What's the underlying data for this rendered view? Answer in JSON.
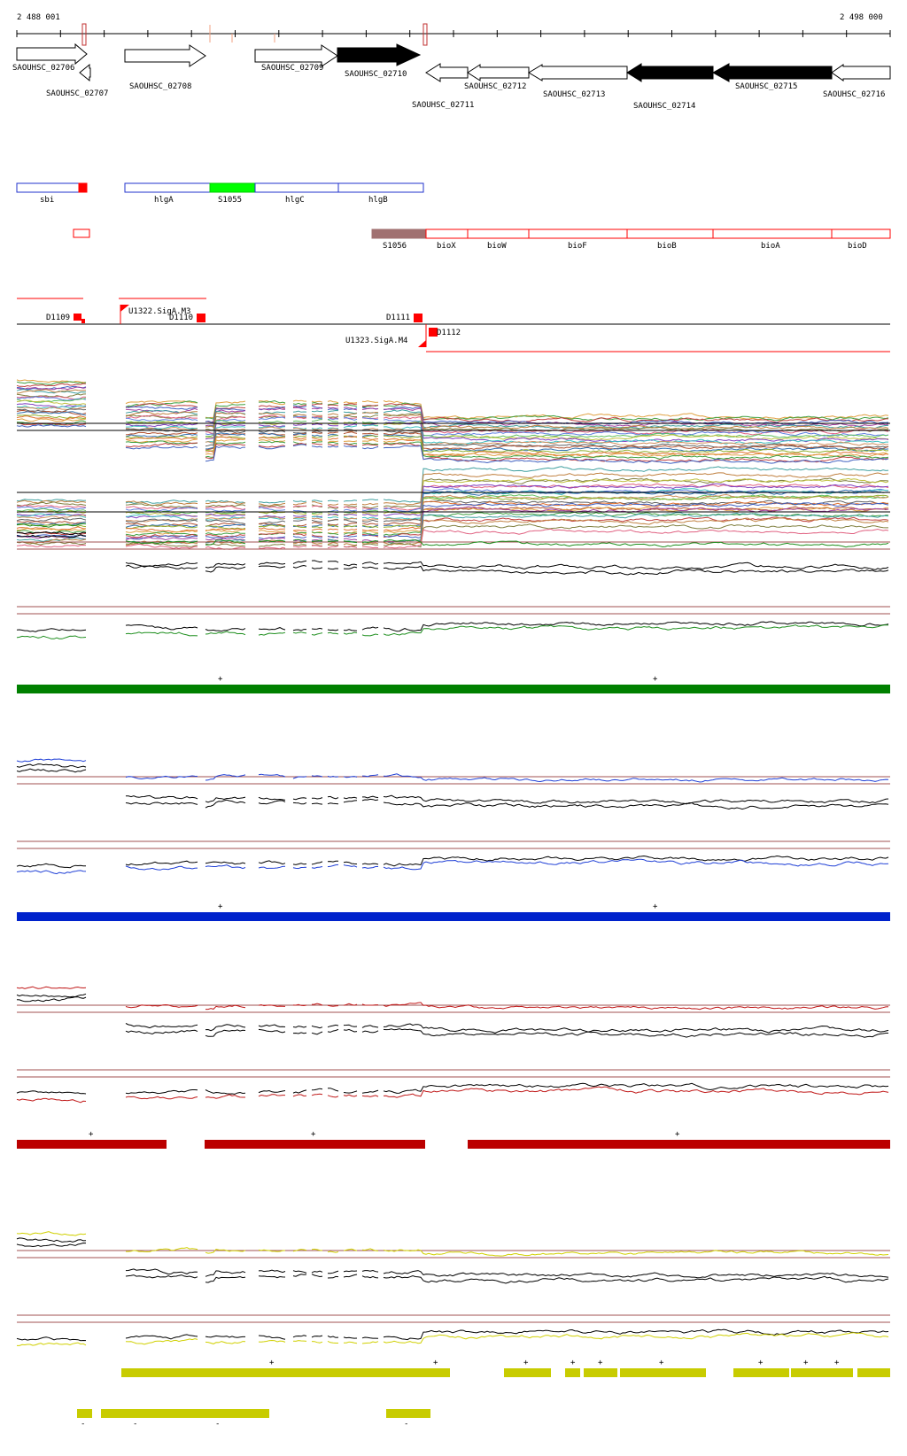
{
  "ruler": {
    "start_label": "2 488 001",
    "end_label": "2 498 000"
  },
  "genes": [
    {
      "label": "SAOUHSC_02706",
      "filled": false,
      "strand": "+"
    },
    {
      "label": "SAOUHSC_02707",
      "filled": false,
      "strand": "-"
    },
    {
      "label": "SAOUHSC_02708",
      "filled": false,
      "strand": "+"
    },
    {
      "label": "SAOUHSC_02709",
      "filled": false,
      "strand": "+"
    },
    {
      "label": "SAOUHSC_02710",
      "filled": true,
      "strand": "+"
    },
    {
      "label": "SAOUHSC_02711",
      "filled": false,
      "strand": "-"
    },
    {
      "label": "SAOUHSC_02712",
      "filled": false,
      "strand": "-"
    },
    {
      "label": "SAOUHSC_02713",
      "filled": false,
      "strand": "-"
    },
    {
      "label": "SAOUHSC_02714",
      "filled": true,
      "strand": "-"
    },
    {
      "label": "SAOUHSC_02715",
      "filled": true,
      "strand": "-"
    },
    {
      "label": "SAOUHSC_02716",
      "filled": false,
      "strand": "-"
    }
  ],
  "annotations_plus": [
    {
      "label": "sbi",
      "style": "blue-outline"
    },
    {
      "label": "hlgA",
      "style": "blue-outline"
    },
    {
      "label": "S1055",
      "style": "green-fill"
    },
    {
      "label": "hlgC",
      "style": "blue-outline"
    },
    {
      "label": "hlgB",
      "style": "blue-outline"
    }
  ],
  "annotations_minus": [
    {
      "label": "S1056",
      "style": "brown-fill"
    },
    {
      "label": "bioX",
      "style": "red-outline"
    },
    {
      "label": "bioW",
      "style": "red-outline"
    },
    {
      "label": "bioF",
      "style": "red-outline"
    },
    {
      "label": "bioB",
      "style": "red-outline"
    },
    {
      "label": "bioA",
      "style": "red-outline"
    },
    {
      "label": "bioD",
      "style": "red-outline"
    }
  ],
  "regulatory": [
    {
      "label": "D1109"
    },
    {
      "label": "U1322.SigA.M3"
    },
    {
      "label": "D1110"
    },
    {
      "label": "D1111"
    },
    {
      "label": "U1323.SigA.M4"
    },
    {
      "label": "D1112"
    }
  ],
  "panels": [
    {
      "name": "green",
      "color": "#008000",
      "line_color": "#1f8f1f",
      "segments_plus_labels": [
        "+",
        "+"
      ],
      "segments_minus_labels": []
    },
    {
      "name": "blue",
      "color": "#0022cc",
      "line_color": "#1f3fd6",
      "segments_plus_labels": [
        "+",
        "+"
      ],
      "segments_minus_labels": []
    },
    {
      "name": "red",
      "color": "#bb0000",
      "line_color": "#c01818",
      "segments_plus_labels": [
        "+",
        "+",
        "+"
      ],
      "segments_minus_labels": []
    },
    {
      "name": "yellow",
      "color": "#c8cc00",
      "line_color": "#d0d000",
      "segments_plus_labels": [
        "+",
        "+",
        "+",
        "+",
        "+",
        "+",
        "+",
        "+",
        "+"
      ],
      "segments_minus_labels": [
        "-",
        "-",
        "-",
        "-"
      ]
    }
  ],
  "colors": {
    "threshold": "#a05050",
    "gene_fill": "#000000",
    "s1056": "#a07070",
    "s1055": "#00ff00",
    "reg_red": "#ff0000"
  }
}
